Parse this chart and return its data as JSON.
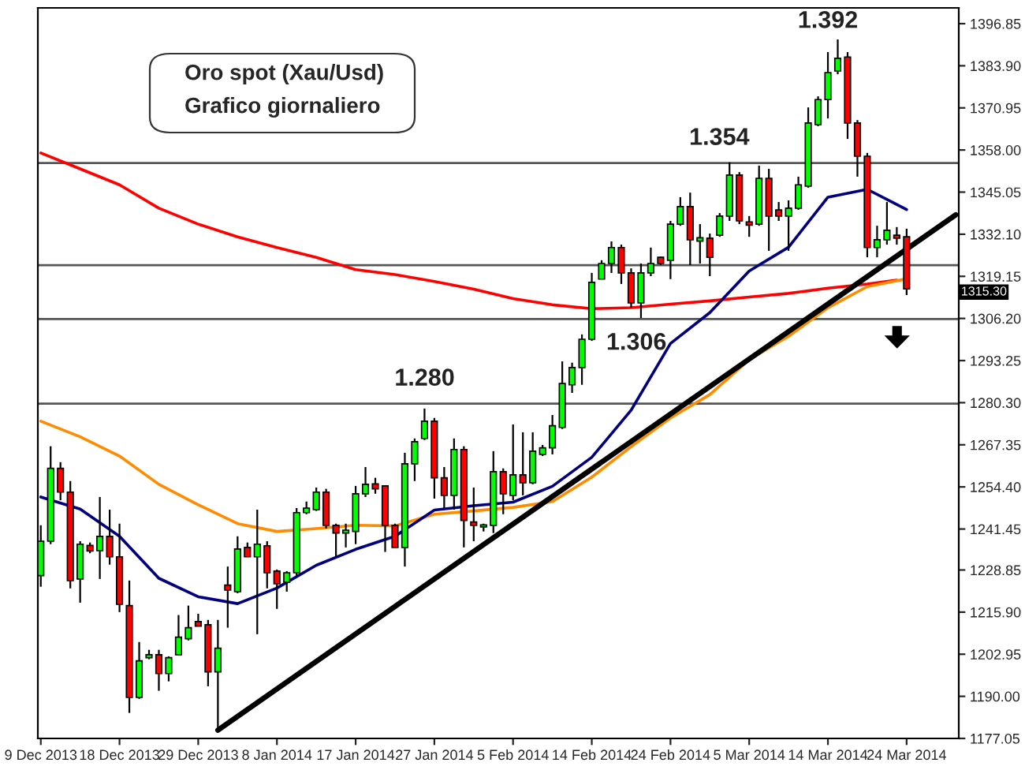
{
  "chart_data": {
    "type": "candlestick",
    "title": "Oro spot (Xau/Usd)",
    "subtitle": "Grafico giornaliero",
    "categories": [
      "9 Dec 2013",
      null,
      null,
      null,
      null,
      null,
      null,
      null,
      "18 Dec 2013",
      null,
      null,
      null,
      null,
      null,
      null,
      null,
      "29 Dec 2013",
      null,
      null,
      null,
      null,
      null,
      null,
      null,
      "8 Jan 2014",
      null,
      null,
      null,
      null,
      null,
      null,
      null,
      "17 Jan 2014",
      null,
      null,
      null,
      null,
      null,
      null,
      null,
      "27 Jan 2014",
      null,
      null,
      null,
      null,
      null,
      null,
      null,
      "5 Feb 2014",
      null,
      null,
      null,
      null,
      null,
      null,
      null,
      "14 Feb 2014",
      null,
      null,
      null,
      null,
      null,
      null,
      null,
      "24 Feb 2014",
      null,
      null,
      null,
      null,
      null,
      null,
      null,
      "5 Mar 2014",
      null,
      null,
      null,
      null,
      null,
      null,
      null,
      "14 Mar 2014",
      null,
      null,
      null,
      null,
      null,
      null,
      null,
      "24 Mar 2014",
      null,
      null,
      null,
      null,
      null
    ],
    "ohlc": [
      [
        1227.1,
        1242.6,
        1223.7,
        1237.7
      ],
      [
        1237.7,
        1266.9,
        1236.8,
        1260.1
      ],
      [
        1260.1,
        1262.0,
        1250.3,
        1252.8
      ],
      [
        1252.8,
        1256.2,
        1223.2,
        1225.6
      ],
      [
        1226.1,
        1237.7,
        1218.8,
        1236.8
      ],
      [
        1236.4,
        1237.3,
        1234.0,
        1234.7
      ],
      [
        1234.8,
        1251.3,
        1226.1,
        1239.2
      ],
      [
        1239.2,
        1247.4,
        1230.5,
        1232.9
      ],
      [
        1232.9,
        1243.1,
        1215.9,
        1218.3
      ],
      [
        1217.9,
        1225.6,
        1184.9,
        1189.7
      ],
      [
        1189.7,
        1206.7,
        1189.2,
        1200.9
      ],
      [
        1201.9,
        1204.3,
        1201.4,
        1202.8
      ],
      [
        1202.8,
        1204.3,
        1191.7,
        1197.0
      ],
      [
        1197.0,
        1202.3,
        1194.6,
        1201.9
      ],
      [
        1202.8,
        1215.0,
        1202.8,
        1208.2
      ],
      [
        1207.7,
        1217.9,
        1207.2,
        1211.1
      ],
      [
        1213.0,
        1215.4,
        1211.6,
        1211.6
      ],
      [
        1212.0,
        1213.5,
        1193.1,
        1197.5
      ],
      [
        1197.5,
        1213.5,
        1179.6,
        1204.8
      ],
      [
        1224.2,
        1229.9,
        1211.1,
        1222.7
      ],
      [
        1222.2,
        1239.2,
        1221.7,
        1235.3
      ],
      [
        1235.8,
        1237.3,
        1232.9,
        1232.9
      ],
      [
        1232.9,
        1247.4,
        1209.1,
        1236.8
      ],
      [
        1236.3,
        1237.7,
        1223.2,
        1228.0
      ],
      [
        1228.5,
        1229.0,
        1216.9,
        1224.6
      ],
      [
        1225.1,
        1228.5,
        1222.2,
        1228.0
      ],
      [
        1228.0,
        1247.9,
        1227.1,
        1246.5
      ],
      [
        1246.5,
        1249.9,
        1246.0,
        1247.9
      ],
      [
        1247.4,
        1254.2,
        1247.0,
        1252.8
      ],
      [
        1252.8,
        1253.8,
        1241.6,
        1242.6
      ],
      [
        1242.6,
        1243.1,
        1232.9,
        1240.2
      ],
      [
        1240.2,
        1243.1,
        1235.8,
        1241.1
      ],
      [
        1240.7,
        1254.7,
        1236.8,
        1252.3
      ],
      [
        1252.3,
        1260.5,
        1251.3,
        1255.2
      ],
      [
        1255.3,
        1257.2,
        1252.3,
        1253.8
      ],
      [
        1254.7,
        1254.7,
        1234.4,
        1242.6
      ],
      [
        1242.6,
        1243.1,
        1235.8,
        1235.8
      ],
      [
        1235.8,
        1264.9,
        1229.9,
        1261.5
      ],
      [
        1261.5,
        1269.3,
        1256.2,
        1268.3
      ],
      [
        1269.3,
        1278.5,
        1268.8,
        1274.6
      ],
      [
        1274.6,
        1275.6,
        1250.8,
        1257.2
      ],
      [
        1257.2,
        1260.5,
        1247.9,
        1251.8
      ],
      [
        1251.8,
        1269.3,
        1247.4,
        1265.9
      ],
      [
        1265.9,
        1266.9,
        1235.8,
        1244.1
      ],
      [
        1243.6,
        1254.2,
        1237.7,
        1242.6
      ],
      [
        1242.1,
        1243.1,
        1240.7,
        1242.7
      ],
      [
        1242.6,
        1265.4,
        1240.2,
        1259.1
      ],
      [
        1259.1,
        1260.1,
        1246.0,
        1252.3
      ],
      [
        1251.8,
        1273.6,
        1250.3,
        1258.1
      ],
      [
        1258.1,
        1271.2,
        1251.8,
        1255.7
      ],
      [
        1255.7,
        1271.2,
        1255.2,
        1265.4
      ],
      [
        1264.4,
        1267.3,
        1263.9,
        1266.4
      ],
      [
        1266.4,
        1276.5,
        1264.4,
        1273.2
      ],
      [
        1272.7,
        1293.0,
        1272.2,
        1286.2
      ],
      [
        1285.8,
        1292.6,
        1283.3,
        1291.1
      ],
      [
        1291.1,
        1301.3,
        1285.8,
        1299.8
      ],
      [
        1299.8,
        1320.2,
        1299.3,
        1317.3
      ],
      [
        1318.3,
        1324.1,
        1318.3,
        1323.1
      ],
      [
        1323.1,
        1329.9,
        1320.2,
        1328.0
      ],
      [
        1328.0,
        1328.9,
        1316.8,
        1320.2
      ],
      [
        1320.2,
        1321.6,
        1309.5,
        1311.0
      ],
      [
        1311.0,
        1323.1,
        1306.3,
        1320.2
      ],
      [
        1320.2,
        1328.0,
        1319.2,
        1323.1
      ],
      [
        1325.0,
        1325.2,
        1322.6,
        1323.1
      ],
      [
        1324.1,
        1336.2,
        1318.3,
        1335.2
      ],
      [
        1335.2,
        1343.5,
        1334.7,
        1340.6
      ],
      [
        1340.6,
        1344.9,
        1322.6,
        1330.4
      ],
      [
        1330.0,
        1335.2,
        1323.1,
        1331.0
      ],
      [
        1330.9,
        1332.3,
        1319.2,
        1325.0
      ],
      [
        1331.8,
        1338.6,
        1331.3,
        1337.7
      ],
      [
        1337.7,
        1354.2,
        1336.2,
        1350.3
      ],
      [
        1350.3,
        1351.2,
        1335.2,
        1336.2
      ],
      [
        1335.9,
        1337.7,
        1331.3,
        1334.9
      ],
      [
        1335.2,
        1353.2,
        1334.7,
        1349.3
      ],
      [
        1349.3,
        1352.2,
        1327.0,
        1337.7
      ],
      [
        1339.6,
        1342.0,
        1336.2,
        1337.7
      ],
      [
        1337.7,
        1342.5,
        1327.0,
        1340.1
      ],
      [
        1340.1,
        1349.8,
        1339.6,
        1347.3
      ],
      [
        1346.9,
        1371.1,
        1346.4,
        1366.3
      ],
      [
        1365.8,
        1374.5,
        1365.3,
        1373.5
      ],
      [
        1373.5,
        1388.1,
        1367.7,
        1381.8
      ],
      [
        1382.3,
        1392.0,
        1381.3,
        1386.2
      ],
      [
        1386.6,
        1388.1,
        1361.4,
        1366.3
      ],
      [
        1366.3,
        1367.2,
        1349.8,
        1356.1
      ],
      [
        1356.1,
        1357.1,
        1325.0,
        1328.0
      ],
      [
        1328.0,
        1334.7,
        1325.0,
        1330.4
      ],
      [
        1330.4,
        1342.0,
        1328.9,
        1333.3
      ],
      [
        1331.8,
        1334.3,
        1328.9,
        1330.9
      ],
      [
        1331.3,
        1333.8,
        1313.4,
        1315.3
      ],
      null,
      null,
      null,
      null,
      null
    ],
    "colors": [
      "#00ff00",
      "#00ff00",
      "#ff0000",
      "#ff0000",
      "#00ff00",
      "#ff0000",
      "#00ff00",
      "#ff0000",
      "#ff0000",
      "#ff0000",
      "#00ff00",
      "#00ff00",
      "#ff0000",
      "#00ff00",
      "#00ff00",
      "#00ff00",
      "#ff0000",
      "#ff0000",
      "#00ff00",
      "#ff0000",
      "#00ff00",
      "#ff0000",
      "#00ff00",
      "#ff0000",
      "#ff0000",
      "#00ff00",
      "#00ff00",
      "#00ff00",
      "#00ff00",
      "#ff0000",
      "#ff0000",
      "#00ff00",
      "#00ff00",
      "#00ff00",
      "#ff0000",
      "#ff0000",
      "#ff0000",
      "#00ff00",
      "#00ff00",
      "#00ff00",
      "#ff0000",
      "#ff0000",
      "#00ff00",
      "#ff0000",
      "#ff0000",
      "#00ff00",
      "#00ff00",
      "#ff0000",
      "#00ff00",
      "#ff0000",
      "#00ff00",
      "#00ff00",
      "#00ff00",
      "#00ff00",
      "#00ff00",
      "#00ff00",
      "#00ff00",
      "#00ff00",
      "#00ff00",
      "#ff0000",
      "#ff0000",
      "#00ff00",
      "#00ff00",
      "#ff0000",
      "#00ff00",
      "#00ff00",
      "#ff0000",
      "#00ff00",
      "#ff0000",
      "#00ff00",
      "#00ff00",
      "#ff0000",
      "#ff0000",
      "#00ff00",
      "#ff0000",
      "#ff0000",
      "#00ff00",
      "#00ff00",
      "#00ff00",
      "#00ff00",
      "#00ff00",
      "#00ff00",
      "#ff0000",
      "#ff0000",
      "#ff0000",
      "#00ff00",
      "#00ff00",
      "#ff0000",
      "#ff0000",
      null,
      null,
      null,
      null,
      null
    ],
    "series": [
      {
        "type": "line",
        "color": "#ff0000",
        "values": [
          1357.1,
          null,
          null,
          null,
          1352.2,
          null,
          null,
          null,
          1347.3,
          null,
          null,
          null,
          1340.1,
          null,
          null,
          null,
          1335.2,
          null,
          null,
          null,
          1331.3,
          null,
          null,
          null,
          1328.0,
          null,
          null,
          null,
          1325.0,
          null,
          null,
          null,
          1321.2,
          null,
          null,
          null,
          1319.7,
          null,
          null,
          null,
          1317.6,
          null,
          null,
          null,
          1315.2,
          null,
          null,
          null,
          1312.3,
          null,
          null,
          null,
          1310.4,
          null,
          null,
          null,
          1309.2,
          null,
          null,
          null,
          1309.5,
          null,
          null,
          null,
          1310.6,
          null,
          null,
          null,
          1311.6,
          null,
          null,
          null,
          1312.8,
          null,
          null,
          null,
          1313.9,
          null,
          null,
          null,
          1315.5,
          null,
          null,
          null,
          1316.8,
          null,
          null,
          1318.0,
          null,
          null,
          null,
          null,
          null,
          null
        ]
      },
      {
        "type": "line",
        "color": "#ff8c00",
        "values": [
          1274.6,
          null,
          null,
          null,
          1269.8,
          null,
          null,
          null,
          1263.9,
          null,
          null,
          null,
          1255.2,
          null,
          null,
          null,
          1248.9,
          null,
          null,
          null,
          1243.1,
          null,
          null,
          null,
          1240.7,
          null,
          null,
          null,
          1241.6,
          null,
          null,
          null,
          1242.6,
          null,
          null,
          null,
          1242.4,
          null,
          null,
          null,
          1246.0,
          null,
          null,
          null,
          1247.0,
          null,
          null,
          null,
          1248.1,
          null,
          null,
          null,
          1249.9,
          null,
          null,
          null,
          1257.4,
          null,
          null,
          null,
          1266.8,
          null,
          null,
          null,
          1275.6,
          null,
          null,
          null,
          1282.8,
          null,
          null,
          null,
          1293.5,
          null,
          null,
          null,
          1300.7,
          null,
          null,
          null,
          1309.5,
          null,
          null,
          null,
          1316.0,
          null,
          null,
          null,
          1318.4,
          null,
          null,
          null,
          null,
          null
        ]
      },
      {
        "type": "line",
        "color": "#000080",
        "values": [
          1251.3,
          null,
          null,
          null,
          1247.6,
          null,
          null,
          null,
          1239.2,
          null,
          null,
          null,
          1226.3,
          null,
          null,
          null,
          1220.6,
          null,
          null,
          null,
          1218.5,
          null,
          null,
          null,
          1223.3,
          null,
          null,
          null,
          1230.3,
          null,
          null,
          null,
          1235.2,
          null,
          null,
          null,
          1239.2,
          null,
          null,
          null,
          1247.3,
          null,
          null,
          null,
          1248.6,
          null,
          null,
          null,
          1249.7,
          null,
          null,
          null,
          1254.6,
          null,
          null,
          null,
          1263.5,
          null,
          null,
          null,
          1278.0,
          null,
          null,
          null,
          1298.5,
          null,
          null,
          null,
          1308.0,
          null,
          null,
          null,
          1320.8,
          null,
          null,
          null,
          1328.1,
          null,
          null,
          null,
          1343.5,
          null,
          null,
          null,
          1345.9,
          null,
          null,
          null,
          1339.7,
          null,
          null,
          null,
          null,
          null
        ]
      },
      {
        "type": "line",
        "color": "#000000",
        "values": [
          null,
          null,
          null,
          null,
          null,
          null,
          null,
          null,
          null,
          null,
          null,
          null,
          null,
          null,
          null,
          null,
          null,
          null,
          1179.6,
          null,
          null,
          null,
          null,
          null,
          null,
          null,
          null,
          null,
          null,
          null,
          null,
          null,
          null,
          null,
          null,
          null,
          null,
          null,
          null,
          null,
          null,
          null,
          null,
          null,
          null,
          null,
          null,
          null,
          null,
          null,
          null,
          null,
          null,
          null,
          null,
          null,
          null,
          null,
          null,
          null,
          null,
          null,
          null,
          null,
          null,
          null,
          null,
          null,
          null,
          null,
          null,
          null,
          null,
          null,
          null,
          null,
          null,
          null,
          null,
          null,
          null,
          null,
          null,
          null,
          null,
          null,
          null,
          null,
          null,
          null,
          null,
          null,
          null,
          1338.1
        ]
      }
    ],
    "ylim": [
      1177.05,
      1401.7
    ],
    "yticks": [
      1177.05,
      {
        "value": 1190,
        "label": "1190.00"
      },
      1202.95,
      {
        "value": 1215.9,
        "label": "1215.90"
      },
      1228.85,
      1241.45,
      {
        "value": 1254.4,
        "label": "1254.40"
      },
      1267.35,
      {
        "value": 1280.3,
        "label": "1280.30"
      },
      1293.25,
      {
        "value": 1306.2,
        "label": "1306.20"
      },
      1319.15,
      {
        "value": 1332.1,
        "label": "1332.10"
      },
      1345.05,
      {
        "value": 1358,
        "label": "1358.00"
      },
      1370.95,
      {
        "value": 1383.9,
        "label": "1383.90"
      },
      1396.85
    ],
    "ref_lines": [
      {
        "axis": "y",
        "value": 1280,
        "color": "#555555"
      },
      {
        "axis": "y",
        "value": 1354,
        "color": "#555555"
      },
      {
        "axis": "y",
        "value": 1306,
        "color": "#555555"
      },
      {
        "axis": "y",
        "value": 1322.6,
        "color": "#555555"
      }
    ],
    "annotations": [
      "1.392",
      "1315.30",
      "1.280",
      "1.354",
      "1.306"
    ]
  }
}
